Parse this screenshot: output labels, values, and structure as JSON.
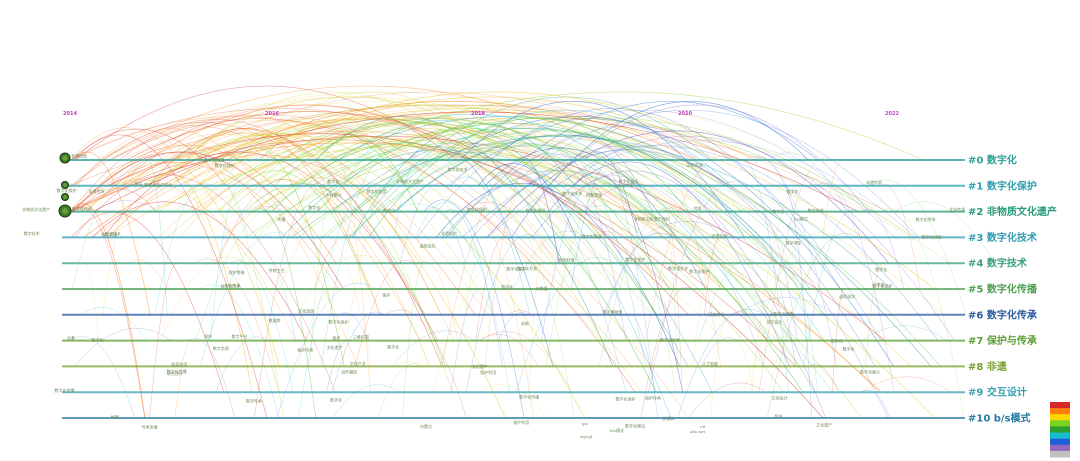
{
  "chart_data": {
    "type": "timeline",
    "years": [
      "2014",
      "2016",
      "2018",
      "2020",
      "2022"
    ],
    "clusters": [
      {
        "id": "#0",
        "name": "数字化",
        "color": "#2aa198"
      },
      {
        "id": "#1",
        "name": "数字化保护",
        "color": "#2a9fb0"
      },
      {
        "id": "#2",
        "name": "非物质文化遗产",
        "color": "#2a9a7a"
      },
      {
        "id": "#3",
        "name": "数字化技术",
        "color": "#2f9db0"
      },
      {
        "id": "#4",
        "name": "数字技术",
        "color": "#3aa07a"
      },
      {
        "id": "#5",
        "name": "数字化传播",
        "color": "#4aa050"
      },
      {
        "id": "#6",
        "name": "数字化传承",
        "color": "#2a5aa0"
      },
      {
        "id": "#7",
        "name": "保护与传承",
        "color": "#5aa030"
      },
      {
        "id": "#8",
        "name": "非遗",
        "color": "#7aa030"
      },
      {
        "id": "#9",
        "name": "交互设计",
        "color": "#3aa0b0"
      },
      {
        "id": "#10",
        "name": "b/s模式",
        "color": "#2a7aa0"
      }
    ],
    "color_scale": [
      "#d62728",
      "#ff7f0e",
      "#ffd700",
      "#7ed321",
      "#2ca02c",
      "#17becf",
      "#1f5fd6",
      "#9467bd",
      "#c0c0c0"
    ],
    "legend_placement": "bottom-right",
    "keywords_left": [
      "档案",
      "数字化",
      "数字化保护",
      "数字化技术",
      "数字化保护平台",
      "非物质文化遗产",
      "数字化传播",
      "数字传承",
      "数字技术",
      "数字化传播",
      "保护",
      "动漫",
      "档案利用",
      "数字资源",
      "保护策略",
      "传承发展",
      "非遗传承",
      "数字平台",
      "数字资源",
      "数字化传播",
      "数字化传承",
      "文化传承",
      "数字化保护",
      "数字技术",
      "研究述评",
      "非遗档案",
      "建设"
    ],
    "keywords_mid": [
      "数字化保护",
      "数字化开发",
      "文化遗产",
      "数字化技术",
      "保护传承",
      "数字化",
      "保护传承",
      "文化资源",
      "数字博物馆",
      "数字化展示",
      "传统村落",
      "虚拟现实",
      "数字化应用",
      "非物质文化遗产保护",
      "文化产业",
      "数字化传播",
      "传统工艺",
      "大数据",
      "创新",
      "数字化传承",
      "文化传承",
      "保护利用",
      "数字化建设",
      "非遗保护",
      "数字化保护",
      "数字化建设",
      "保护",
      "三维扫描",
      "保护利用",
      "新媒体",
      "档案管理",
      "文化遗产",
      "文化旅游",
      "数字化保护",
      "传播",
      "乡村振兴",
      "数字化",
      "传承",
      "数字化技术",
      "数字化保护",
      "数字化开发",
      "数字化管理",
      "非物质文化遗产",
      "保护",
      "数字化",
      "数字化保护",
      "数字化",
      "数字化",
      "数据库",
      "动作捕捉",
      "数字化保护",
      "数字化"
    ],
    "keywords_right": [
      "非遗文创",
      "数字化",
      "数字孪生",
      "文化遗产",
      "文创设计",
      "数字化",
      "元宇宙",
      "数字技术",
      "虚拟现实",
      "非遗传承",
      "数字化",
      "活态传承",
      "数字化转型",
      "数字化保护",
      "文化传承",
      "人工智能",
      "数字化传播",
      "保护",
      "数字化展示",
      "交互设计",
      "数字化",
      "数字化传承",
      "b/s模式",
      "数字化"
    ],
    "bottom_labels": [
      "内蒙古",
      "gis",
      "b/s模式",
      "mysql",
      "c#",
      "ado.net"
    ]
  }
}
